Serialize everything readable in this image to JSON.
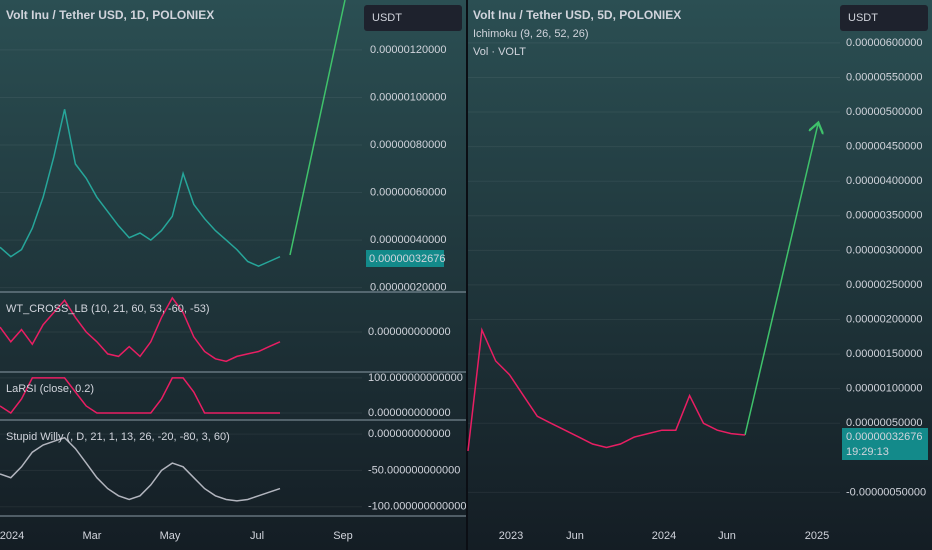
{
  "left_chart": {
    "title": "Volt Inu / Tether USD, 1D, POLONIEX",
    "currency": "USDT",
    "last_price": "0.00000032676",
    "ylim": [
      1.9e-07,
      1.41e-06
    ],
    "yticks": [
      {
        "value": 1.2e-06,
        "label": "0.00000120000"
      },
      {
        "value": 1e-06,
        "label": "0.00000100000"
      },
      {
        "value": 8e-07,
        "label": "0.00000080000"
      },
      {
        "value": 6e-07,
        "label": "0.00000060000"
      },
      {
        "value": 4e-07,
        "label": "0.00000040000"
      },
      {
        "value": 2e-07,
        "label": "0.00000020000"
      }
    ],
    "close": [
      3.7e-07,
      3.3e-07,
      3.6e-07,
      4.5e-07,
      5.8e-07,
      7.5e-07,
      9.5e-07,
      7.2e-07,
      6.6e-07,
      5.8e-07,
      5.2e-07,
      4.6e-07,
      4.1e-07,
      4.3e-07,
      4e-07,
      4.4e-07,
      5e-07,
      6.8e-07,
      5.5e-07,
      4.9e-07,
      4.4e-07,
      4e-07,
      3.6e-07,
      3.1e-07,
      2.9e-07,
      3.1e-07,
      3.3e-07
    ],
    "xticks": [
      "2024",
      "Mar",
      "May",
      "Jul",
      "Sep"
    ],
    "indicators": [
      {
        "name": "WT_CROSS_LB (10, 21, 60, 53, -60, -53)",
        "ylim": [
          -80,
          80
        ],
        "yticks": [
          {
            "value": 0,
            "label": "0.000000000000"
          }
        ],
        "values": [
          10,
          -20,
          5,
          -25,
          15,
          40,
          65,
          30,
          0,
          -20,
          -45,
          -50,
          -30,
          -50,
          -20,
          30,
          70,
          40,
          -10,
          -40,
          -55,
          -60,
          -50,
          -45,
          -40,
          -30,
          -20
        ]
      },
      {
        "name": "LaRSI (close, 0.2)",
        "ylim": [
          -17,
          114
        ],
        "yticks": [
          {
            "value": 100,
            "label": "100.000000000000"
          },
          {
            "value": 0,
            "label": "0.000000000000"
          }
        ],
        "values": [
          20,
          0,
          40,
          100,
          100,
          100,
          100,
          60,
          20,
          0,
          0,
          0,
          0,
          0,
          0,
          40,
          100,
          100,
          60,
          0,
          0,
          0,
          0,
          0,
          0,
          0,
          0
        ]
      },
      {
        "name": "Stupid Willy (, D, 21, 1, 13, 26, -20, -80, 3, 60)",
        "ylim": [
          -110,
          18
        ],
        "yticks": [
          {
            "value": 0,
            "label": "0.000000000000"
          },
          {
            "value": -50,
            "label": "-50.000000000000"
          },
          {
            "value": -100,
            "label": "-100.000000000000"
          }
        ],
        "values": [
          -55,
          -60,
          -45,
          -25,
          -15,
          -10,
          -5,
          -20,
          -40,
          -60,
          -75,
          -85,
          -90,
          -85,
          -70,
          -50,
          -40,
          -45,
          -60,
          -75,
          -85,
          -90,
          -92,
          -90,
          -85,
          -80,
          -75
        ]
      }
    ]
  },
  "right_chart": {
    "title": "Volt Inu / Tether USD, 5D, POLONIEX",
    "ichimoku": "Ichimoku (9, 26, 52, 26)",
    "volume": "Vol · VOLT",
    "currency": "USDT",
    "last_price": "0.00000032676",
    "countdown": "19:29:13",
    "ylim": [
      -8.7e-07,
      6.62e-06
    ],
    "yticks": [
      {
        "value": 6e-06,
        "label": "0.00000600000"
      },
      {
        "value": 5.5e-06,
        "label": "0.00000550000"
      },
      {
        "value": 5e-06,
        "label": "0.00000500000"
      },
      {
        "value": 4.5e-06,
        "label": "0.00000450000"
      },
      {
        "value": 4e-06,
        "label": "0.00000400000"
      },
      {
        "value": 3.5e-06,
        "label": "0.00000350000"
      },
      {
        "value": 3e-06,
        "label": "0.00000300000"
      },
      {
        "value": 2.5e-06,
        "label": "0.00000250000"
      },
      {
        "value": 2e-06,
        "label": "0.00000200000"
      },
      {
        "value": 1.5e-06,
        "label": "0.00000150000"
      },
      {
        "value": 1e-06,
        "label": "0.00000100000"
      },
      {
        "value": 5e-07,
        "label": "0.00000050000"
      },
      {
        "value": -5e-07,
        "label": "-0.00000050000"
      }
    ],
    "close": [
      1e-07,
      1.85e-06,
      1.4e-06,
      1.2e-06,
      9e-07,
      6e-07,
      5e-07,
      4e-07,
      3e-07,
      2e-07,
      1.5e-07,
      2e-07,
      3e-07,
      3.5e-07,
      4e-07,
      4e-07,
      9e-07,
      5e-07,
      4e-07,
      3.5e-07,
      3.3e-07
    ],
    "xticks": [
      "2023",
      "Jun",
      "2024",
      "Jun",
      "2025"
    ]
  }
}
